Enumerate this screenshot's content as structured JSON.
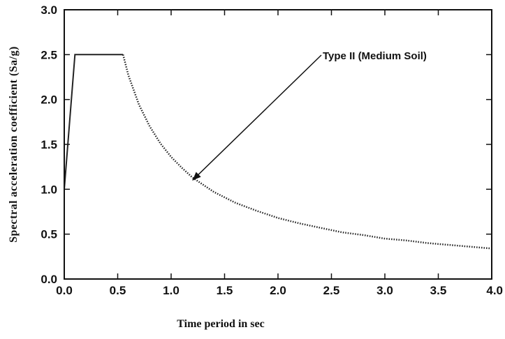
{
  "chart_data": {
    "type": "line",
    "xlabel": "Time period in sec",
    "ylabel": "Spectral acceleration coefficient (Sa/g)",
    "xlim": [
      0.0,
      4.0
    ],
    "ylim": [
      0.0,
      3.0
    ],
    "x_ticks": [
      "0.0",
      "0.5",
      "1.0",
      "1.5",
      "2.0",
      "2.5",
      "3.0",
      "3.5",
      "4.0"
    ],
    "y_ticks": [
      "0.0",
      "0.5",
      "1.0",
      "1.5",
      "2.0",
      "2.5",
      "3.0"
    ],
    "grid": false,
    "series": [
      {
        "name": "Type II (Medium Soil)",
        "color": "#222222",
        "x": [
          0.0,
          0.1,
          0.55,
          0.6,
          0.7,
          0.8,
          0.9,
          1.0,
          1.1,
          1.2,
          1.3,
          1.4,
          1.5,
          1.6,
          1.8,
          2.0,
          2.2,
          2.4,
          2.6,
          2.8,
          3.0,
          3.2,
          3.4,
          3.6,
          3.8,
          4.0
        ],
        "y": [
          1.0,
          2.5,
          2.5,
          2.27,
          1.94,
          1.7,
          1.51,
          1.36,
          1.24,
          1.13,
          1.05,
          0.97,
          0.91,
          0.85,
          0.76,
          0.68,
          0.62,
          0.57,
          0.52,
          0.49,
          0.45,
          0.43,
          0.4,
          0.38,
          0.36,
          0.34
        ]
      }
    ],
    "annotation": {
      "text": "Type II (Medium Soil)",
      "points_to": {
        "x": 1.2,
        "y": 1.1
      }
    }
  }
}
